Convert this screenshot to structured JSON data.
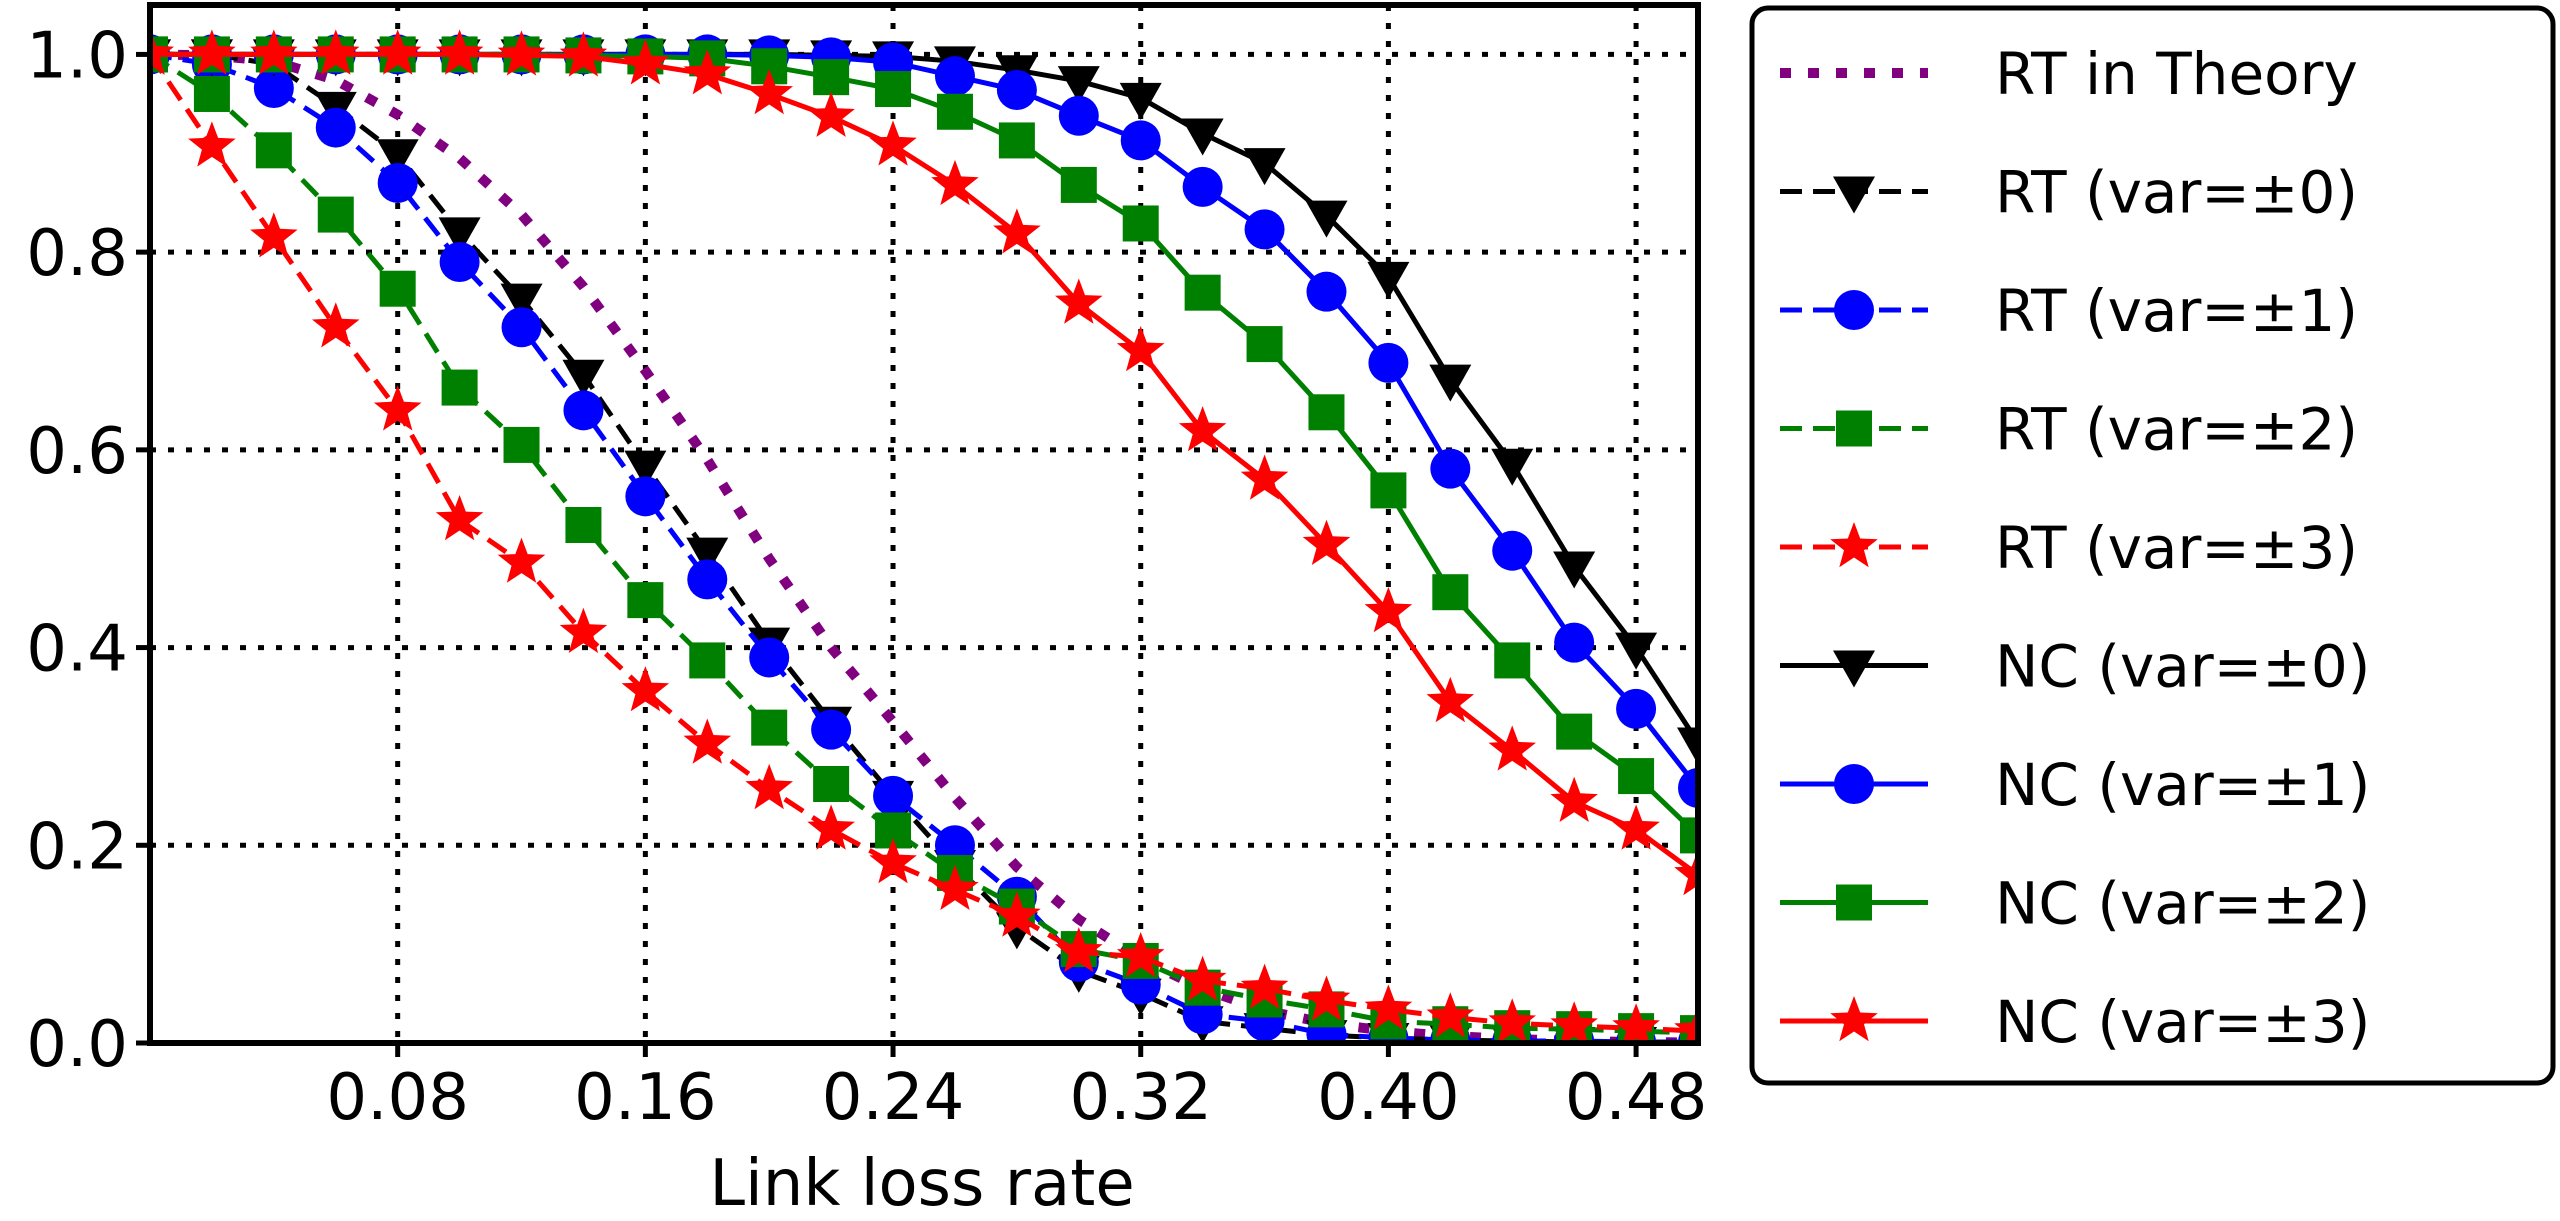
{
  "chart_data": {
    "type": "line",
    "title": "",
    "xlabel": "Link loss rate",
    "ylabel": "",
    "xlim": [
      0,
      0.5
    ],
    "ylim": [
      0,
      1.05
    ],
    "grid": true,
    "legend_position": "outside-right",
    "xticks": [
      0.08,
      0.16,
      0.24,
      0.32,
      0.4,
      0.48
    ],
    "xtick_labels": [
      "0.08",
      "0.16",
      "0.24",
      "0.32",
      "0.40",
      "0.48"
    ],
    "yticks": [
      0.0,
      0.2,
      0.4,
      0.6,
      0.8,
      1.0
    ],
    "ytick_labels": [
      "0.0",
      "0.2",
      "0.4",
      "0.6",
      "0.8",
      "1.0"
    ],
    "x": [
      0,
      0.02,
      0.04,
      0.06,
      0.08,
      0.1,
      0.12,
      0.14,
      0.16,
      0.18,
      0.2,
      0.22,
      0.24,
      0.26,
      0.28,
      0.3,
      0.32,
      0.34,
      0.36,
      0.38,
      0.4,
      0.42,
      0.44,
      0.46,
      0.48,
      0.5
    ],
    "series": [
      {
        "name": "RT in Theory",
        "color": "#800080",
        "linestyle": "dotted",
        "marker": "none",
        "values": [
          1.0,
          0.999,
          0.993,
          0.974,
          0.939,
          0.895,
          0.838,
          0.765,
          0.68,
          0.59,
          0.49,
          0.4,
          0.325,
          0.248,
          0.178,
          0.125,
          0.085,
          0.055,
          0.033,
          0.02,
          0.012,
          0.007,
          0.004,
          0.002,
          0.001,
          0.0005
        ]
      },
      {
        "name": "RT (var=±0)",
        "color": "#000000",
        "linestyle": "dashed",
        "marker": "triangle-down",
        "values": [
          1.0,
          1.0,
          0.99,
          0.947,
          0.899,
          0.82,
          0.753,
          0.676,
          0.584,
          0.496,
          0.405,
          0.325,
          0.25,
          0.18,
          0.117,
          0.073,
          0.05,
          0.022,
          0.015,
          0.008,
          0.005,
          0.003,
          0.002,
          0.001,
          0.001,
          0.0
        ]
      },
      {
        "name": "RT (var=±1)",
        "color": "#0000ff",
        "linestyle": "dashed",
        "marker": "circle",
        "values": [
          1.0,
          0.99,
          0.966,
          0.926,
          0.87,
          0.79,
          0.724,
          0.64,
          0.553,
          0.469,
          0.39,
          0.317,
          0.25,
          0.2,
          0.148,
          0.082,
          0.059,
          0.029,
          0.022,
          0.009,
          0.005,
          0.003,
          0.002,
          0.002,
          0.001,
          0.001
        ]
      },
      {
        "name": "RT (var=±2)",
        "color": "#008000",
        "linestyle": "dashed",
        "marker": "square",
        "values": [
          1.0,
          0.96,
          0.903,
          0.838,
          0.763,
          0.663,
          0.605,
          0.524,
          0.448,
          0.387,
          0.319,
          0.262,
          0.215,
          0.172,
          0.138,
          0.095,
          0.083,
          0.056,
          0.044,
          0.034,
          0.022,
          0.019,
          0.015,
          0.014,
          0.012,
          0.01
        ]
      },
      {
        "name": "RT (var=±3)",
        "color": "#ff0000",
        "linestyle": "dashed",
        "marker": "star",
        "values": [
          1.0,
          0.907,
          0.815,
          0.724,
          0.64,
          0.529,
          0.486,
          0.415,
          0.356,
          0.303,
          0.257,
          0.216,
          0.182,
          0.155,
          0.128,
          0.092,
          0.087,
          0.063,
          0.055,
          0.043,
          0.034,
          0.026,
          0.02,
          0.017,
          0.015,
          0.012
        ]
      },
      {
        "name": "NC (var=±0)",
        "color": "#000000",
        "linestyle": "solid",
        "marker": "triangle-down",
        "values": [
          1.0,
          1.0,
          1.0,
          1.0,
          1.0,
          1.0,
          1.0,
          1.0,
          1.0,
          1.0,
          1.0,
          0.999,
          0.998,
          0.993,
          0.984,
          0.973,
          0.956,
          0.92,
          0.89,
          0.837,
          0.775,
          0.671,
          0.586,
          0.482,
          0.4,
          0.304
        ]
      },
      {
        "name": "NC (var=±1)",
        "color": "#0000ff",
        "linestyle": "solid",
        "marker": "circle",
        "values": [
          1.0,
          1.0,
          1.0,
          1.0,
          1.0,
          1.0,
          1.0,
          1.0,
          1.0,
          1.0,
          0.999,
          0.997,
          0.992,
          0.978,
          0.964,
          0.938,
          0.913,
          0.866,
          0.823,
          0.76,
          0.688,
          0.581,
          0.498,
          0.405,
          0.338,
          0.258
        ]
      },
      {
        "name": "NC (var=±2)",
        "color": "#008000",
        "linestyle": "solid",
        "marker": "square",
        "values": [
          1.0,
          1.0,
          1.0,
          1.0,
          1.0,
          1.0,
          1.0,
          0.999,
          0.998,
          0.996,
          0.988,
          0.977,
          0.965,
          0.942,
          0.913,
          0.868,
          0.829,
          0.759,
          0.707,
          0.638,
          0.559,
          0.456,
          0.387,
          0.315,
          0.27,
          0.21
        ]
      },
      {
        "name": "NC (var=±3)",
        "color": "#ff0000",
        "linestyle": "solid",
        "marker": "star",
        "values": [
          1.0,
          1.0,
          1.0,
          1.0,
          1.0,
          1.0,
          0.999,
          0.998,
          0.99,
          0.98,
          0.96,
          0.937,
          0.908,
          0.868,
          0.819,
          0.748,
          0.7,
          0.619,
          0.57,
          0.504,
          0.436,
          0.345,
          0.296,
          0.244,
          0.216,
          0.17
        ]
      }
    ]
  }
}
